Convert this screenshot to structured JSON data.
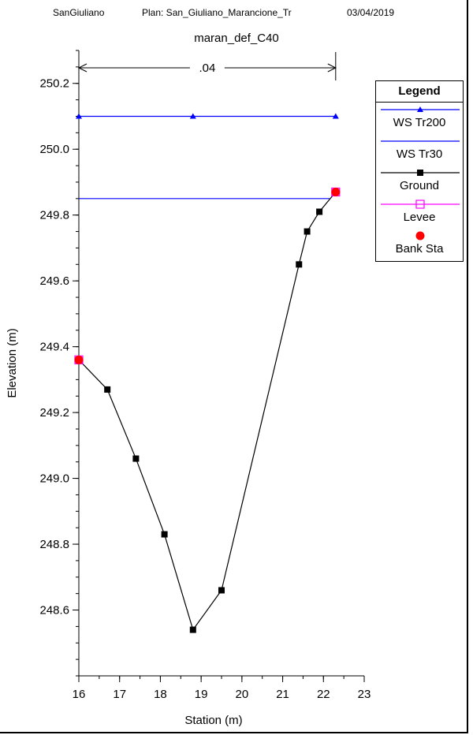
{
  "header": {
    "project": "SanGiuliano",
    "plan": "Plan: San_Giuliano_Marancione_Tr",
    "date": "03/04/2019"
  },
  "chart_data": {
    "type": "line",
    "title": "maran_def_C40",
    "xlabel": "Station (m)",
    "ylabel": "Elevation (m)",
    "xlim": [
      16,
      23
    ],
    "ylim": [
      248.4,
      250.3
    ],
    "xticks": [
      16,
      17,
      18,
      19,
      20,
      21,
      22,
      23
    ],
    "yticks": [
      248.6,
      248.8,
      249.0,
      249.2,
      249.4,
      249.6,
      249.8,
      250.0,
      250.2
    ],
    "ytick_labels": [
      "248.6",
      "248.8",
      "249.0",
      "249.2",
      "249.4",
      "249.6",
      "249.8",
      "250.0",
      "250.2"
    ],
    "manning": {
      "label": ".04",
      "from": 16,
      "to": 22.3
    },
    "legend_title": "Legend",
    "legend_position": "right",
    "series": [
      {
        "name": "WS Tr200",
        "color": "#0000ff",
        "marker": "triangle",
        "x": [
          16,
          18.8,
          22.3
        ],
        "y": [
          250.1,
          250.1,
          250.1
        ]
      },
      {
        "name": "WS Tr30",
        "color": "#0000ff",
        "marker": "none",
        "x": [
          16,
          22.15
        ],
        "y": [
          249.85,
          249.85
        ]
      },
      {
        "name": "Ground",
        "color": "#000000",
        "marker": "square",
        "x": [
          16,
          16.7,
          17.4,
          18.1,
          18.8,
          19.5,
          21.4,
          21.6,
          21.9,
          22.3
        ],
        "y": [
          249.36,
          249.27,
          249.06,
          248.83,
          248.54,
          248.66,
          249.65,
          249.75,
          249.81,
          249.87
        ]
      },
      {
        "name": "Levee",
        "color": "#ff00ff",
        "marker": "open-square",
        "x": [
          16,
          22.3
        ],
        "y": [
          249.36,
          249.87
        ]
      },
      {
        "name": "Bank Sta",
        "color": "#ff0000",
        "marker": "circle",
        "x": [
          16,
          22.3
        ],
        "y": [
          249.36,
          249.87
        ]
      }
    ]
  }
}
